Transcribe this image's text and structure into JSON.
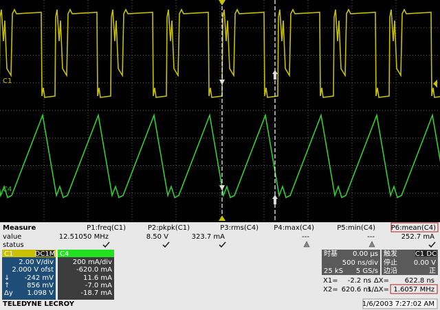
{
  "traces": {
    "c1": "C1",
    "c4": "C4"
  },
  "measure": {
    "title": "Measure",
    "row_labels": [
      "value",
      "status"
    ],
    "params": [
      {
        "name": "P1:freq(C1)",
        "value": "12.51050 MHz",
        "status": "ok"
      },
      {
        "name": "P2:pkpk(C1)",
        "value": "8.50 V",
        "status": "ok"
      },
      {
        "name": "P3:rms(C4)",
        "value": "323.7 mA",
        "status": "ok"
      },
      {
        "name": "P4:max(C4)",
        "value": "---",
        "status": "warn"
      },
      {
        "name": "P5:min(C4)",
        "value": "---",
        "status": "warn"
      },
      {
        "name": "P6:mean(C4)",
        "value": "252.7 mA",
        "status": "ok"
      }
    ]
  },
  "channels": [
    {
      "name": "C1",
      "coupling": "DC1M",
      "scale": "2.00 V/div",
      "offset": "2.000 V ofst",
      "stats": [
        {
          "label": "↓",
          "value": "-242 mV"
        },
        {
          "label": "↑",
          "value": "856 mV"
        },
        {
          "label": "Δy",
          "value": "1.098 V"
        }
      ]
    },
    {
      "name": "C4",
      "scale": "200 mA/div",
      "offset": "-620.0 mA",
      "stats": [
        "11.6 mA",
        "-7.0 mA",
        "-18.7 mA"
      ]
    }
  ],
  "timebase": {
    "label": "时基",
    "delay": "0.00 µs",
    "scale": "500 ns/div",
    "samples": "25 kS",
    "rate": "5 GS/s"
  },
  "trigger": {
    "label": "触发",
    "source": "C1 DC",
    "level": "0.00 V",
    "mode": "停止",
    "type": "边沿",
    "slope": "正"
  },
  "cursors": {
    "x1_label": "X1=",
    "x1": "-2.2 ns",
    "dx_label": "ΔX=",
    "dx": "622.8 ns",
    "x2_label": "X2=",
    "x2": "620.6 ns",
    "inv_label": "1/ΔX=",
    "inv": "1.6057 MHz"
  },
  "footer": {
    "brand": "TELEDYNE LECROY",
    "datetime": "1/6/2003 7:27:02 AM"
  }
}
